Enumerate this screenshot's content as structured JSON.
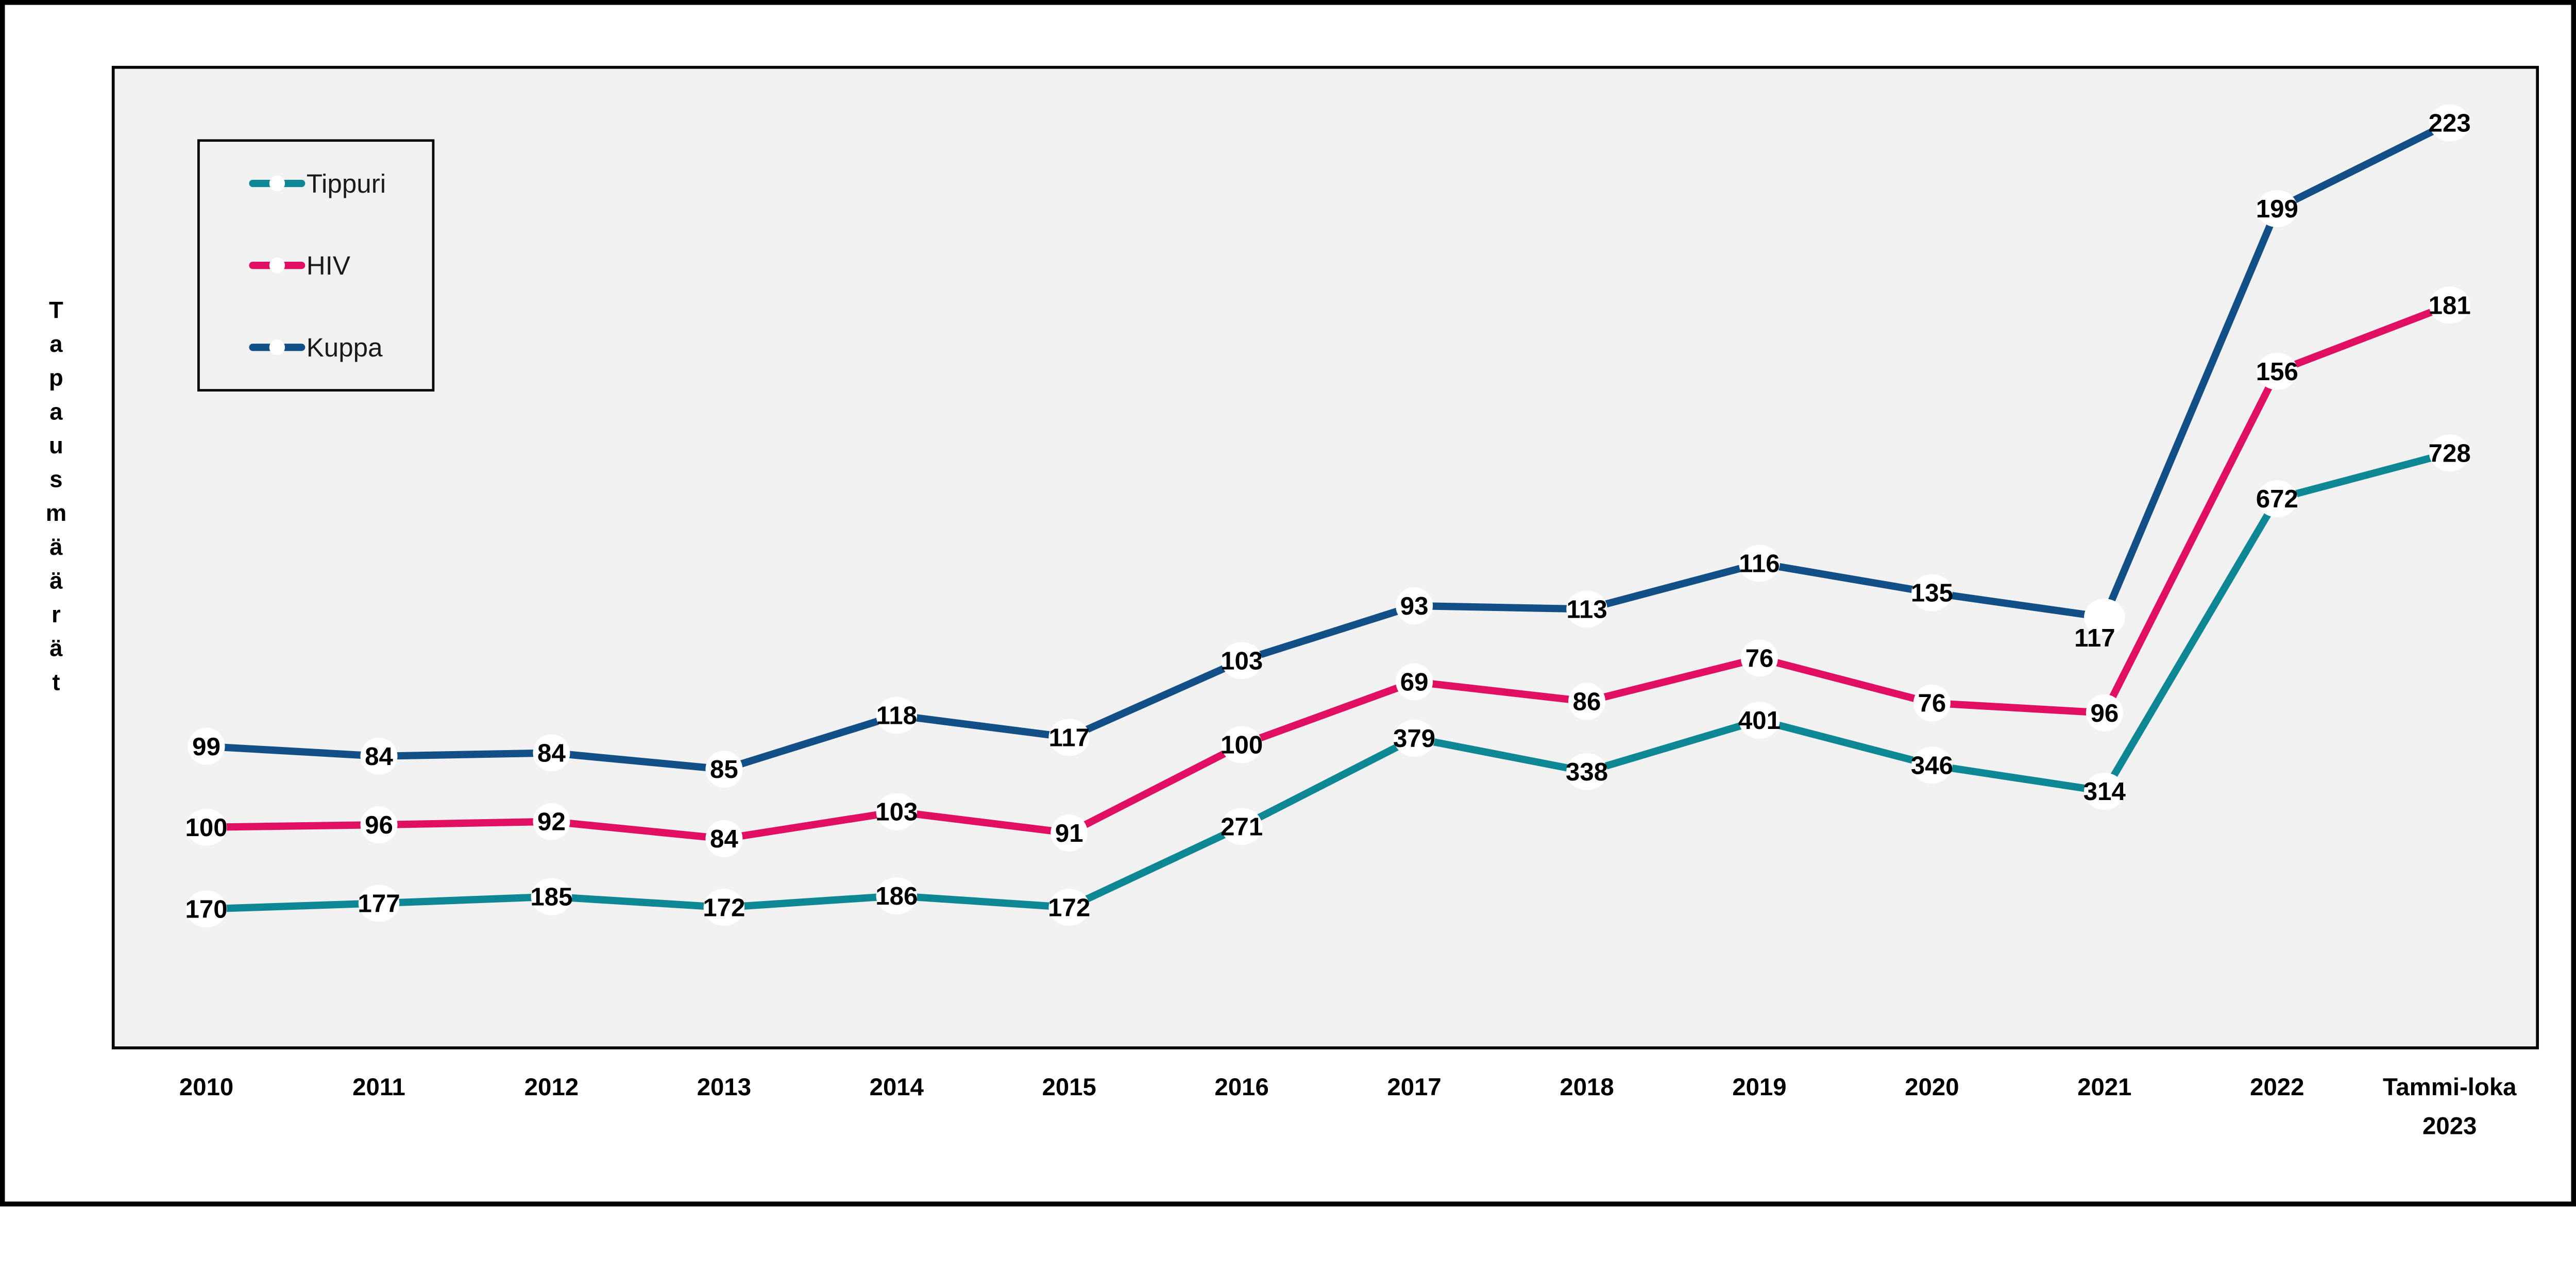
{
  "chart_data": {
    "type": "line",
    "stacked": true,
    "title": "",
    "ylabel": "Tapausmäärät",
    "xlabel": "",
    "ylim": [
      0,
      1200
    ],
    "grid": false,
    "legend_position": "top-left",
    "categories": [
      "2010",
      "2011",
      "2012",
      "2013",
      "2014",
      "2015",
      "2016",
      "2017",
      "2018",
      "2019",
      "2020",
      "2021",
      "2022",
      "Tammi-loka\n2023"
    ],
    "series": [
      {
        "name": "Tippuri",
        "color": "#0e8795",
        "values": [
          170,
          177,
          185,
          172,
          186,
          172,
          271,
          379,
          338,
          401,
          346,
          314,
          672,
          728
        ]
      },
      {
        "name": "HIV",
        "color": "#e00f63",
        "values": [
          100,
          96,
          92,
          84,
          103,
          91,
          100,
          69,
          86,
          76,
          76,
          96,
          156,
          181
        ]
      },
      {
        "name": "Kuppa",
        "color": "#134f87",
        "values": [
          99,
          84,
          84,
          85,
          118,
          117,
          103,
          93,
          113,
          116,
          135,
          117,
          199,
          223
        ]
      }
    ],
    "point_label_offsets": [
      {
        "series": "Kuppa",
        "index": 11,
        "dx": -20,
        "dy": 42
      }
    ],
    "colors": {
      "plot_bg": "#f1f1f1",
      "page_bg": "#ffffff",
      "border": "#000000",
      "label_text": "#000000",
      "marker_fill": "#ffffff"
    }
  }
}
